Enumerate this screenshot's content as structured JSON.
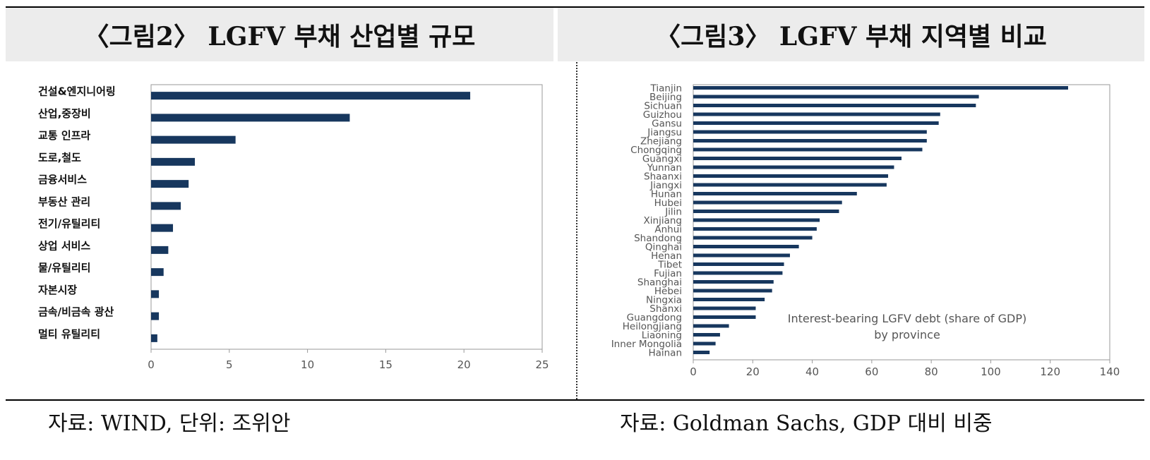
{
  "left_panel": {
    "title": "〈그림2〉 LGFV 부채 산업별 규모",
    "source": "자료:  WIND, 단위: 조위안"
  },
  "right_panel": {
    "title": "〈그림3〉 LGFV 부채 지역별 비교",
    "source": "자료: Goldman Sachs, GDP 대비 비중"
  },
  "colors": {
    "bar": "#17375e",
    "axis": "#999999",
    "title_band": "#ececec"
  },
  "chart_data": [
    {
      "type": "bar",
      "orientation": "horizontal",
      "categories": [
        "건설&엔지니어링",
        "산업,중장비",
        "교통 인프라",
        "도로,철도",
        "금융서비스",
        "부동산 관리",
        "전기/유틸리티",
        "상업 서비스",
        "물/유틸리티",
        "자본시장",
        "금속/비금속 광산",
        "멀티 유틸리티"
      ],
      "values": [
        20.4,
        12.7,
        5.4,
        2.8,
        2.4,
        1.9,
        1.4,
        1.1,
        0.8,
        0.5,
        0.5,
        0.4
      ],
      "xlim": [
        0,
        25
      ],
      "xticks": [
        0,
        5,
        10,
        15,
        20,
        25
      ],
      "grid": false
    },
    {
      "type": "bar",
      "orientation": "horizontal",
      "categories": [
        "Tianjin",
        "Beijing",
        "Sichuan",
        "Guizhou",
        "Gansu",
        "Jiangsu",
        "Zhejiang",
        "Chongqing",
        "Guangxi",
        "Yunnan",
        "Shaanxi",
        "Jiangxi",
        "Hunan",
        "Hubei",
        "Jilin",
        "Xinjiang",
        "Anhui",
        "Shandong",
        "Qinghai",
        "Henan",
        "Tibet",
        "Fujian",
        "Shanghai",
        "Hebei",
        "Ningxia",
        "Shanxi",
        "Guangdong",
        "Heilongjiang",
        "Liaoning",
        "Inner Mongolia",
        "Hainan"
      ],
      "values": [
        126,
        96,
        95,
        83,
        82.5,
        78.5,
        78.5,
        77,
        70,
        67.5,
        65.5,
        65,
        55,
        50,
        49,
        42.5,
        41.5,
        40,
        35.5,
        32.5,
        30.5,
        30,
        27,
        26.5,
        24,
        21,
        21,
        12,
        9,
        7.5,
        5.5
      ],
      "xlim": [
        0,
        140
      ],
      "xticks": [
        0,
        20,
        40,
        60,
        80,
        100,
        120,
        140
      ],
      "annotation": [
        "Interest-bearing LGFV debt (share of GDP)",
        "by province"
      ],
      "grid": false
    }
  ]
}
